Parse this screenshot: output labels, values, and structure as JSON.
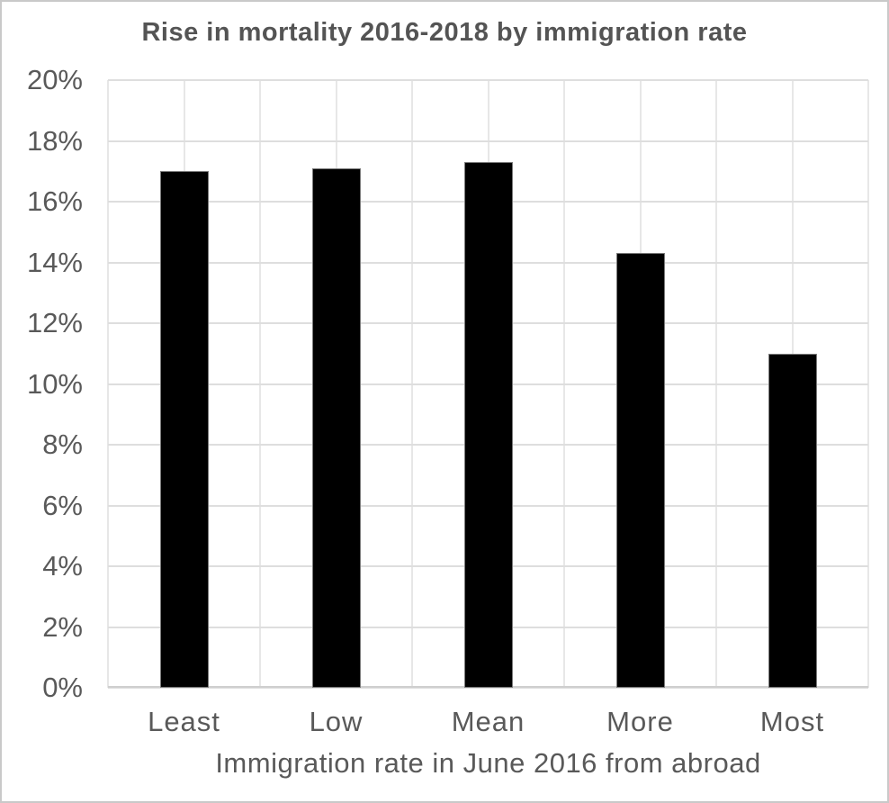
{
  "chart_data": {
    "type": "bar",
    "title": "Rise in mortality 2016-2018 by immigration rate",
    "categories": [
      "Least",
      "Low",
      "Mean",
      "More",
      "Most"
    ],
    "values": [
      17.0,
      17.1,
      17.3,
      14.3,
      11.0
    ],
    "value_unit": "%",
    "xlabel": "Immigration rate in June 2016 from abroad",
    "ylabel": "",
    "ylim": [
      0,
      20
    ],
    "ytick_step": 2,
    "ytick_labels": [
      "0%",
      "2%",
      "4%",
      "6%",
      "8%",
      "10%",
      "12%",
      "14%",
      "16%",
      "18%",
      "20%"
    ],
    "grid": "horizontal-and-vertical",
    "legend": "none",
    "colors": {
      "bar_fill": "#000000",
      "bar_border": "#7a7a7a",
      "gridline": "#dedede",
      "baseline": "#cfcfcf",
      "title_text": "#545454",
      "label_text": "#595959",
      "background": "#ffffff",
      "canvas_border": "#c9c9c9"
    }
  }
}
